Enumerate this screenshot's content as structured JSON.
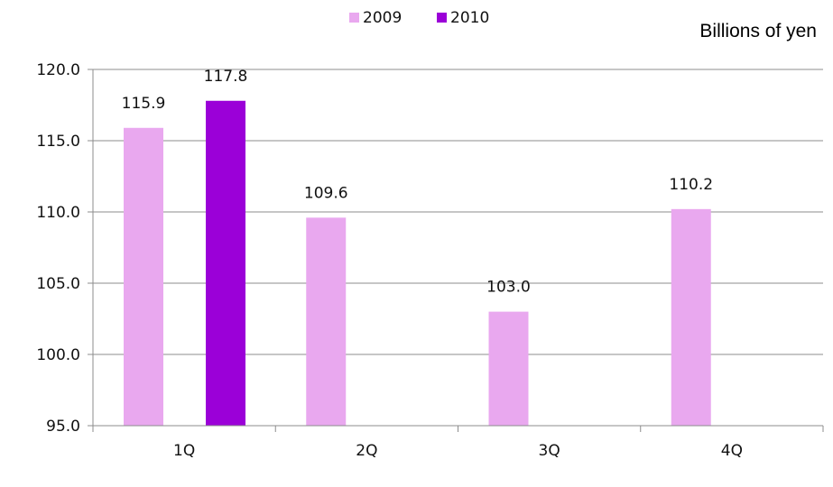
{
  "chart_data": {
    "type": "bar",
    "unit_label": "Billions of yen",
    "categories": [
      "1Q",
      "2Q",
      "3Q",
      "4Q"
    ],
    "series": [
      {
        "name": "2009",
        "color": "#e9a8ef",
        "values": [
          115.9,
          109.6,
          103.0,
          110.2
        ]
      },
      {
        "name": "2010",
        "color": "#9b00d8",
        "values": [
          117.8,
          null,
          null,
          null
        ]
      }
    ],
    "data_labels": [
      [
        "115.9",
        "109.6",
        "103.0",
        "110.2"
      ],
      [
        "117.8",
        null,
        null,
        null
      ]
    ],
    "ylim": [
      95.0,
      120.0
    ],
    "yticks": [
      "95.0",
      "100.0",
      "105.0",
      "110.0",
      "115.0",
      "120.0"
    ],
    "ytick_values": [
      95,
      100,
      105,
      110,
      115,
      120
    ],
    "grid": true,
    "legend_position": "top"
  }
}
